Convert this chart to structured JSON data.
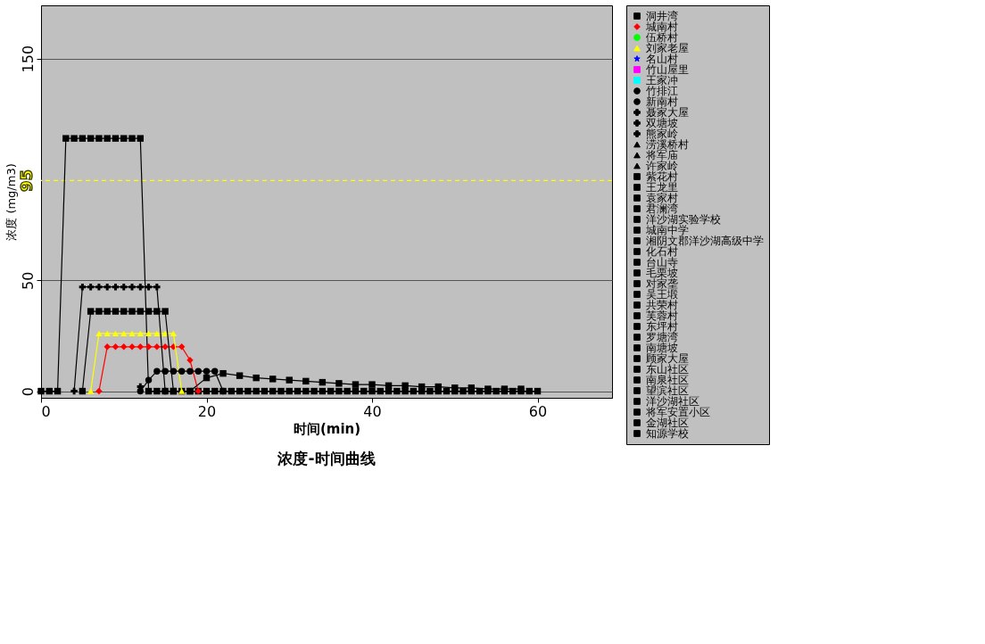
{
  "chart_data": {
    "type": "line",
    "title": "浓度-时间曲线",
    "xlabel": "时间(min)",
    "ylabel": "浓度 (mg/m3)",
    "xlim": [
      0,
      69
    ],
    "xticks": [
      0,
      20,
      40,
      60
    ],
    "ylim": [
      -3,
      174
    ],
    "yticks": [
      0,
      50,
      150
    ],
    "grid": "y",
    "legend": "right",
    "ref_lines": [
      {
        "axis": "y",
        "value": 95,
        "label": "95",
        "color": "#ffff00",
        "line_style": "dashed"
      }
    ],
    "series": [
      {
        "name": "洞井湾",
        "color": "#000000",
        "marker": "square",
        "x": [
          0,
          1,
          2,
          3,
          4,
          5,
          6,
          7,
          8,
          9,
          10,
          11,
          12,
          13,
          14,
          15,
          16,
          17,
          18,
          19,
          20,
          21,
          22,
          23,
          24,
          25,
          26,
          27,
          28,
          29,
          30,
          31,
          32,
          33,
          34,
          35,
          36,
          37,
          38,
          39,
          40,
          41,
          42,
          43,
          44,
          45,
          46,
          47,
          48,
          49,
          50,
          51,
          52,
          53,
          54,
          55,
          56,
          57,
          58,
          59,
          60
        ],
        "values": [
          0,
          0,
          0,
          114,
          114,
          114,
          114,
          114,
          114,
          114,
          114,
          114,
          114,
          0,
          0,
          0,
          0,
          0,
          0,
          0,
          0,
          0,
          0,
          0,
          0,
          0,
          0,
          0,
          0,
          0,
          0,
          0,
          0,
          0,
          0,
          0,
          0,
          0,
          0,
          0,
          0,
          0,
          0,
          0,
          0,
          0,
          0,
          0,
          0,
          0,
          0,
          0,
          0,
          0,
          0,
          0,
          0,
          0,
          0,
          0,
          0
        ]
      },
      {
        "name": "城南村",
        "color": "#ff0000",
        "marker": "diamond",
        "x": [
          7,
          8,
          9,
          10,
          11,
          12,
          13,
          14,
          15,
          16,
          17,
          18,
          19
        ],
        "values": [
          0,
          20,
          20,
          20,
          20,
          20,
          20,
          20,
          20,
          20,
          20,
          14,
          0
        ]
      },
      {
        "name": "伍桥村",
        "color": "#00ff00",
        "marker": "circle",
        "values": [
          null
        ]
      },
      {
        "name": "刘家老屋",
        "color": "#ffff00",
        "marker": "triangle",
        "x": [
          6,
          7,
          8,
          9,
          10,
          11,
          12,
          13,
          14,
          15,
          16,
          17
        ],
        "values": [
          0,
          26,
          26,
          26,
          26,
          26,
          26,
          26,
          26,
          26,
          26,
          0
        ]
      },
      {
        "name": "名山村",
        "color": "#0000ff",
        "marker": "star",
        "values": [
          null
        ]
      },
      {
        "name": "竹山屋里",
        "color": "#ff00ff",
        "marker": "square",
        "values": [
          null
        ]
      },
      {
        "name": "王家冲",
        "color": "#00ffff",
        "marker": "square",
        "values": [
          null
        ]
      },
      {
        "name": "竹排江",
        "color": "#000000",
        "marker": "circle",
        "x": [
          12,
          13,
          14,
          15,
          16,
          17,
          18,
          19,
          20,
          21,
          22
        ],
        "values": [
          0,
          5,
          9,
          9,
          9,
          9,
          9,
          9,
          9,
          9,
          0
        ]
      },
      {
        "name": "新南村",
        "color": "#000000",
        "marker": "circle",
        "values": [
          null
        ]
      },
      {
        "name": "聂家大屋",
        "color": "#000000",
        "marker": "cross",
        "values": [
          null
        ]
      },
      {
        "name": "双塘坡",
        "color": "#000000",
        "marker": "cross",
        "x": [
          12
        ],
        "values": [
          2
        ]
      },
      {
        "name": "熊家岭",
        "color": "#000000",
        "marker": "cross",
        "x": [
          4,
          5,
          6,
          7,
          8,
          9,
          10,
          11,
          12,
          13,
          14,
          15
        ],
        "values": [
          0,
          47,
          47,
          47,
          47,
          47,
          47,
          47,
          47,
          47,
          47,
          0
        ]
      },
      {
        "name": "涝溪桥村",
        "color": "#000000",
        "marker": "triangle",
        "values": [
          null
        ]
      },
      {
        "name": "将军庙",
        "color": "#000000",
        "marker": "triangle",
        "values": [
          null
        ]
      },
      {
        "name": "许家岭",
        "color": "#000000",
        "marker": "triangle",
        "values": [
          null
        ]
      },
      {
        "name": "紫花村",
        "color": "#000000",
        "marker": "square",
        "x": [
          5,
          6,
          7,
          8,
          9,
          10,
          11,
          12,
          13,
          14,
          15,
          16
        ],
        "values": [
          0,
          36,
          36,
          36,
          36,
          36,
          36,
          36,
          36,
          36,
          36,
          0
        ]
      },
      {
        "name": "王龙里",
        "color": "#000000",
        "marker": "square",
        "x": [
          18,
          20,
          22,
          24,
          26,
          28,
          30,
          32,
          34,
          36,
          38,
          40,
          42,
          44,
          46,
          48,
          50,
          52,
          54,
          56,
          58
        ],
        "values": [
          0,
          6,
          8,
          7,
          6,
          5.5,
          5,
          4.5,
          4,
          3.5,
          3,
          3,
          2.5,
          2.5,
          2,
          2,
          1.5,
          1.5,
          1,
          1,
          1
        ]
      },
      {
        "name": "袁家村",
        "color": "#000000",
        "marker": "square",
        "values": [
          null
        ]
      },
      {
        "name": "君澜湾",
        "color": "#000000",
        "marker": "square",
        "values": [
          null
        ]
      },
      {
        "name": "洋沙湖实验学校",
        "color": "#000000",
        "marker": "square",
        "values": [
          null
        ]
      },
      {
        "name": "城南中学",
        "color": "#000000",
        "marker": "square",
        "values": [
          null
        ]
      },
      {
        "name": "湘阴文郡洋沙湖高级中学",
        "color": "#000000",
        "marker": "square",
        "values": [
          null
        ]
      },
      {
        "name": "化石村",
        "color": "#000000",
        "marker": "square",
        "values": [
          null
        ]
      },
      {
        "name": "台山寺",
        "color": "#000000",
        "marker": "square",
        "values": [
          null
        ]
      },
      {
        "name": "毛栗坡",
        "color": "#000000",
        "marker": "square",
        "values": [
          null
        ]
      },
      {
        "name": "对家垄",
        "color": "#000000",
        "marker": "square",
        "values": [
          null
        ]
      },
      {
        "name": "吴王塅",
        "color": "#000000",
        "marker": "square",
        "values": [
          null
        ]
      },
      {
        "name": "共荣村",
        "color": "#000000",
        "marker": "square",
        "values": [
          null
        ]
      },
      {
        "name": "芙蓉村",
        "color": "#000000",
        "marker": "square",
        "values": [
          null
        ]
      },
      {
        "name": "东坪村",
        "color": "#000000",
        "marker": "square",
        "values": [
          null
        ]
      },
      {
        "name": "罗塘湾",
        "color": "#000000",
        "marker": "square",
        "values": [
          null
        ]
      },
      {
        "name": "南塘坡",
        "color": "#000000",
        "marker": "square",
        "values": [
          null
        ]
      },
      {
        "name": "顾家大屋",
        "color": "#000000",
        "marker": "square",
        "values": [
          null
        ]
      },
      {
        "name": "东山社区",
        "color": "#000000",
        "marker": "square",
        "values": [
          null
        ]
      },
      {
        "name": "南泉社区",
        "color": "#000000",
        "marker": "square",
        "values": [
          null
        ]
      },
      {
        "name": "望滨社区",
        "color": "#000000",
        "marker": "square",
        "values": [
          null
        ]
      },
      {
        "name": "洋沙湖社区",
        "color": "#000000",
        "marker": "square",
        "values": [
          null
        ]
      },
      {
        "name": "将军安置小区",
        "color": "#000000",
        "marker": "square",
        "values": [
          null
        ]
      },
      {
        "name": "金湖社区",
        "color": "#000000",
        "marker": "square",
        "values": [
          null
        ]
      },
      {
        "name": "知源学校",
        "color": "#000000",
        "marker": "square",
        "values": [
          null
        ]
      }
    ]
  }
}
